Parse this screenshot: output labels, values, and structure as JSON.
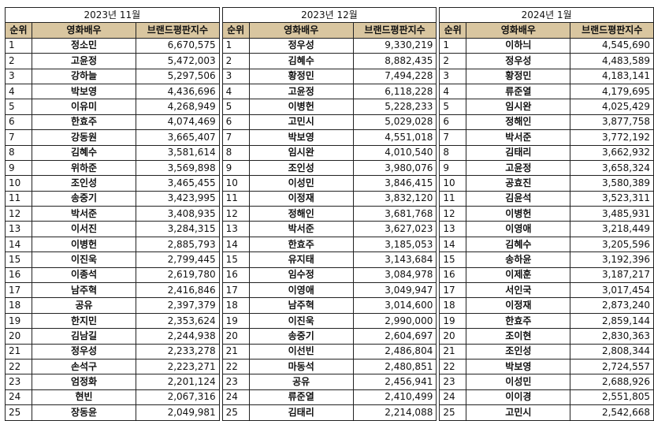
{
  "tables": [
    {
      "title": "2023년 11월",
      "headers": [
        "순위",
        "영화배우",
        "브랜드평판지수"
      ],
      "rows": [
        [
          "1",
          "정소민",
          "6,670,575"
        ],
        [
          "2",
          "고윤정",
          "5,472,003"
        ],
        [
          "3",
          "강하늘",
          "5,297,506"
        ],
        [
          "4",
          "박보영",
          "4,436,696"
        ],
        [
          "5",
          "이유미",
          "4,268,949"
        ],
        [
          "6",
          "한효주",
          "4,074,469"
        ],
        [
          "7",
          "강동원",
          "3,665,407"
        ],
        [
          "8",
          "김혜수",
          "3,581,614"
        ],
        [
          "9",
          "위하준",
          "3,569,898"
        ],
        [
          "10",
          "조인성",
          "3,465,455"
        ],
        [
          "11",
          "송중기",
          "3,423,995"
        ],
        [
          "12",
          "박서준",
          "3,408,935"
        ],
        [
          "13",
          "이서진",
          "3,284,315"
        ],
        [
          "14",
          "이병헌",
          "2,885,793"
        ],
        [
          "15",
          "이진욱",
          "2,799,445"
        ],
        [
          "16",
          "이종석",
          "2,619,780"
        ],
        [
          "17",
          "남주혁",
          "2,416,846"
        ],
        [
          "18",
          "공유",
          "2,397,379"
        ],
        [
          "19",
          "한지민",
          "2,353,624"
        ],
        [
          "20",
          "김남길",
          "2,244,938"
        ],
        [
          "21",
          "정우성",
          "2,233,278"
        ],
        [
          "22",
          "손석구",
          "2,223,271"
        ],
        [
          "23",
          "엄정화",
          "2,201,124"
        ],
        [
          "24",
          "현빈",
          "2,067,316"
        ],
        [
          "25",
          "장동윤",
          "2,049,981"
        ]
      ]
    },
    {
      "title": "2023년 12월",
      "headers": [
        "순위",
        "영화배우",
        "브랜드평판지수"
      ],
      "rows": [
        [
          "1",
          "정우성",
          "9,330,219"
        ],
        [
          "2",
          "김혜수",
          "8,882,435"
        ],
        [
          "3",
          "황정민",
          "7,494,228"
        ],
        [
          "4",
          "고윤정",
          "6,118,228"
        ],
        [
          "5",
          "이병헌",
          "5,228,233"
        ],
        [
          "6",
          "고민시",
          "5,029,028"
        ],
        [
          "7",
          "박보영",
          "4,551,018"
        ],
        [
          "8",
          "임시완",
          "4,010,540"
        ],
        [
          "9",
          "조인성",
          "3,980,076"
        ],
        [
          "10",
          "이성민",
          "3,846,415"
        ],
        [
          "11",
          "이정재",
          "3,832,120"
        ],
        [
          "12",
          "정해인",
          "3,681,768"
        ],
        [
          "13",
          "박서준",
          "3,627,023"
        ],
        [
          "14",
          "한효주",
          "3,185,053"
        ],
        [
          "15",
          "유지태",
          "3,143,684"
        ],
        [
          "16",
          "임수정",
          "3,084,978"
        ],
        [
          "17",
          "이영애",
          "3,049,947"
        ],
        [
          "18",
          "남주혁",
          "3,014,600"
        ],
        [
          "19",
          "이진욱",
          "2,990,000"
        ],
        [
          "20",
          "송중기",
          "2,604,697"
        ],
        [
          "21",
          "이선빈",
          "2,486,804"
        ],
        [
          "22",
          "마동석",
          "2,480,851"
        ],
        [
          "23",
          "공유",
          "2,456,941"
        ],
        [
          "24",
          "류준열",
          "2,410,499"
        ],
        [
          "25",
          "김태리",
          "2,214,088"
        ]
      ]
    },
    {
      "title": "2024년 1월",
      "headers": [
        "순위",
        "영화배우",
        "브랜드평판지수"
      ],
      "rows": [
        [
          "1",
          "이하늬",
          "4,545,690"
        ],
        [
          "2",
          "정우성",
          "4,483,589"
        ],
        [
          "3",
          "황정민",
          "4,183,141"
        ],
        [
          "4",
          "류준열",
          "4,179,695"
        ],
        [
          "5",
          "임시완",
          "4,025,429"
        ],
        [
          "6",
          "정해인",
          "3,877,758"
        ],
        [
          "7",
          "박서준",
          "3,772,192"
        ],
        [
          "8",
          "김태리",
          "3,662,932"
        ],
        [
          "9",
          "고윤정",
          "3,658,324"
        ],
        [
          "10",
          "공효진",
          "3,580,389"
        ],
        [
          "11",
          "김윤석",
          "3,523,311"
        ],
        [
          "12",
          "이병헌",
          "3,485,931"
        ],
        [
          "13",
          "이영애",
          "3,218,449"
        ],
        [
          "14",
          "김혜수",
          "3,205,596"
        ],
        [
          "15",
          "송하윤",
          "3,192,396"
        ],
        [
          "16",
          "이제훈",
          "3,187,217"
        ],
        [
          "17",
          "서인국",
          "3,017,454"
        ],
        [
          "18",
          "이정재",
          "2,873,240"
        ],
        [
          "19",
          "한효주",
          "2,859,144"
        ],
        [
          "20",
          "조이현",
          "2,830,363"
        ],
        [
          "21",
          "조인성",
          "2,808,344"
        ],
        [
          "22",
          "박보영",
          "2,724,557"
        ],
        [
          "23",
          "이성민",
          "2,688,926"
        ],
        [
          "24",
          "이이경",
          "2,551,805"
        ],
        [
          "25",
          "고민시",
          "2,542,668"
        ]
      ]
    }
  ]
}
